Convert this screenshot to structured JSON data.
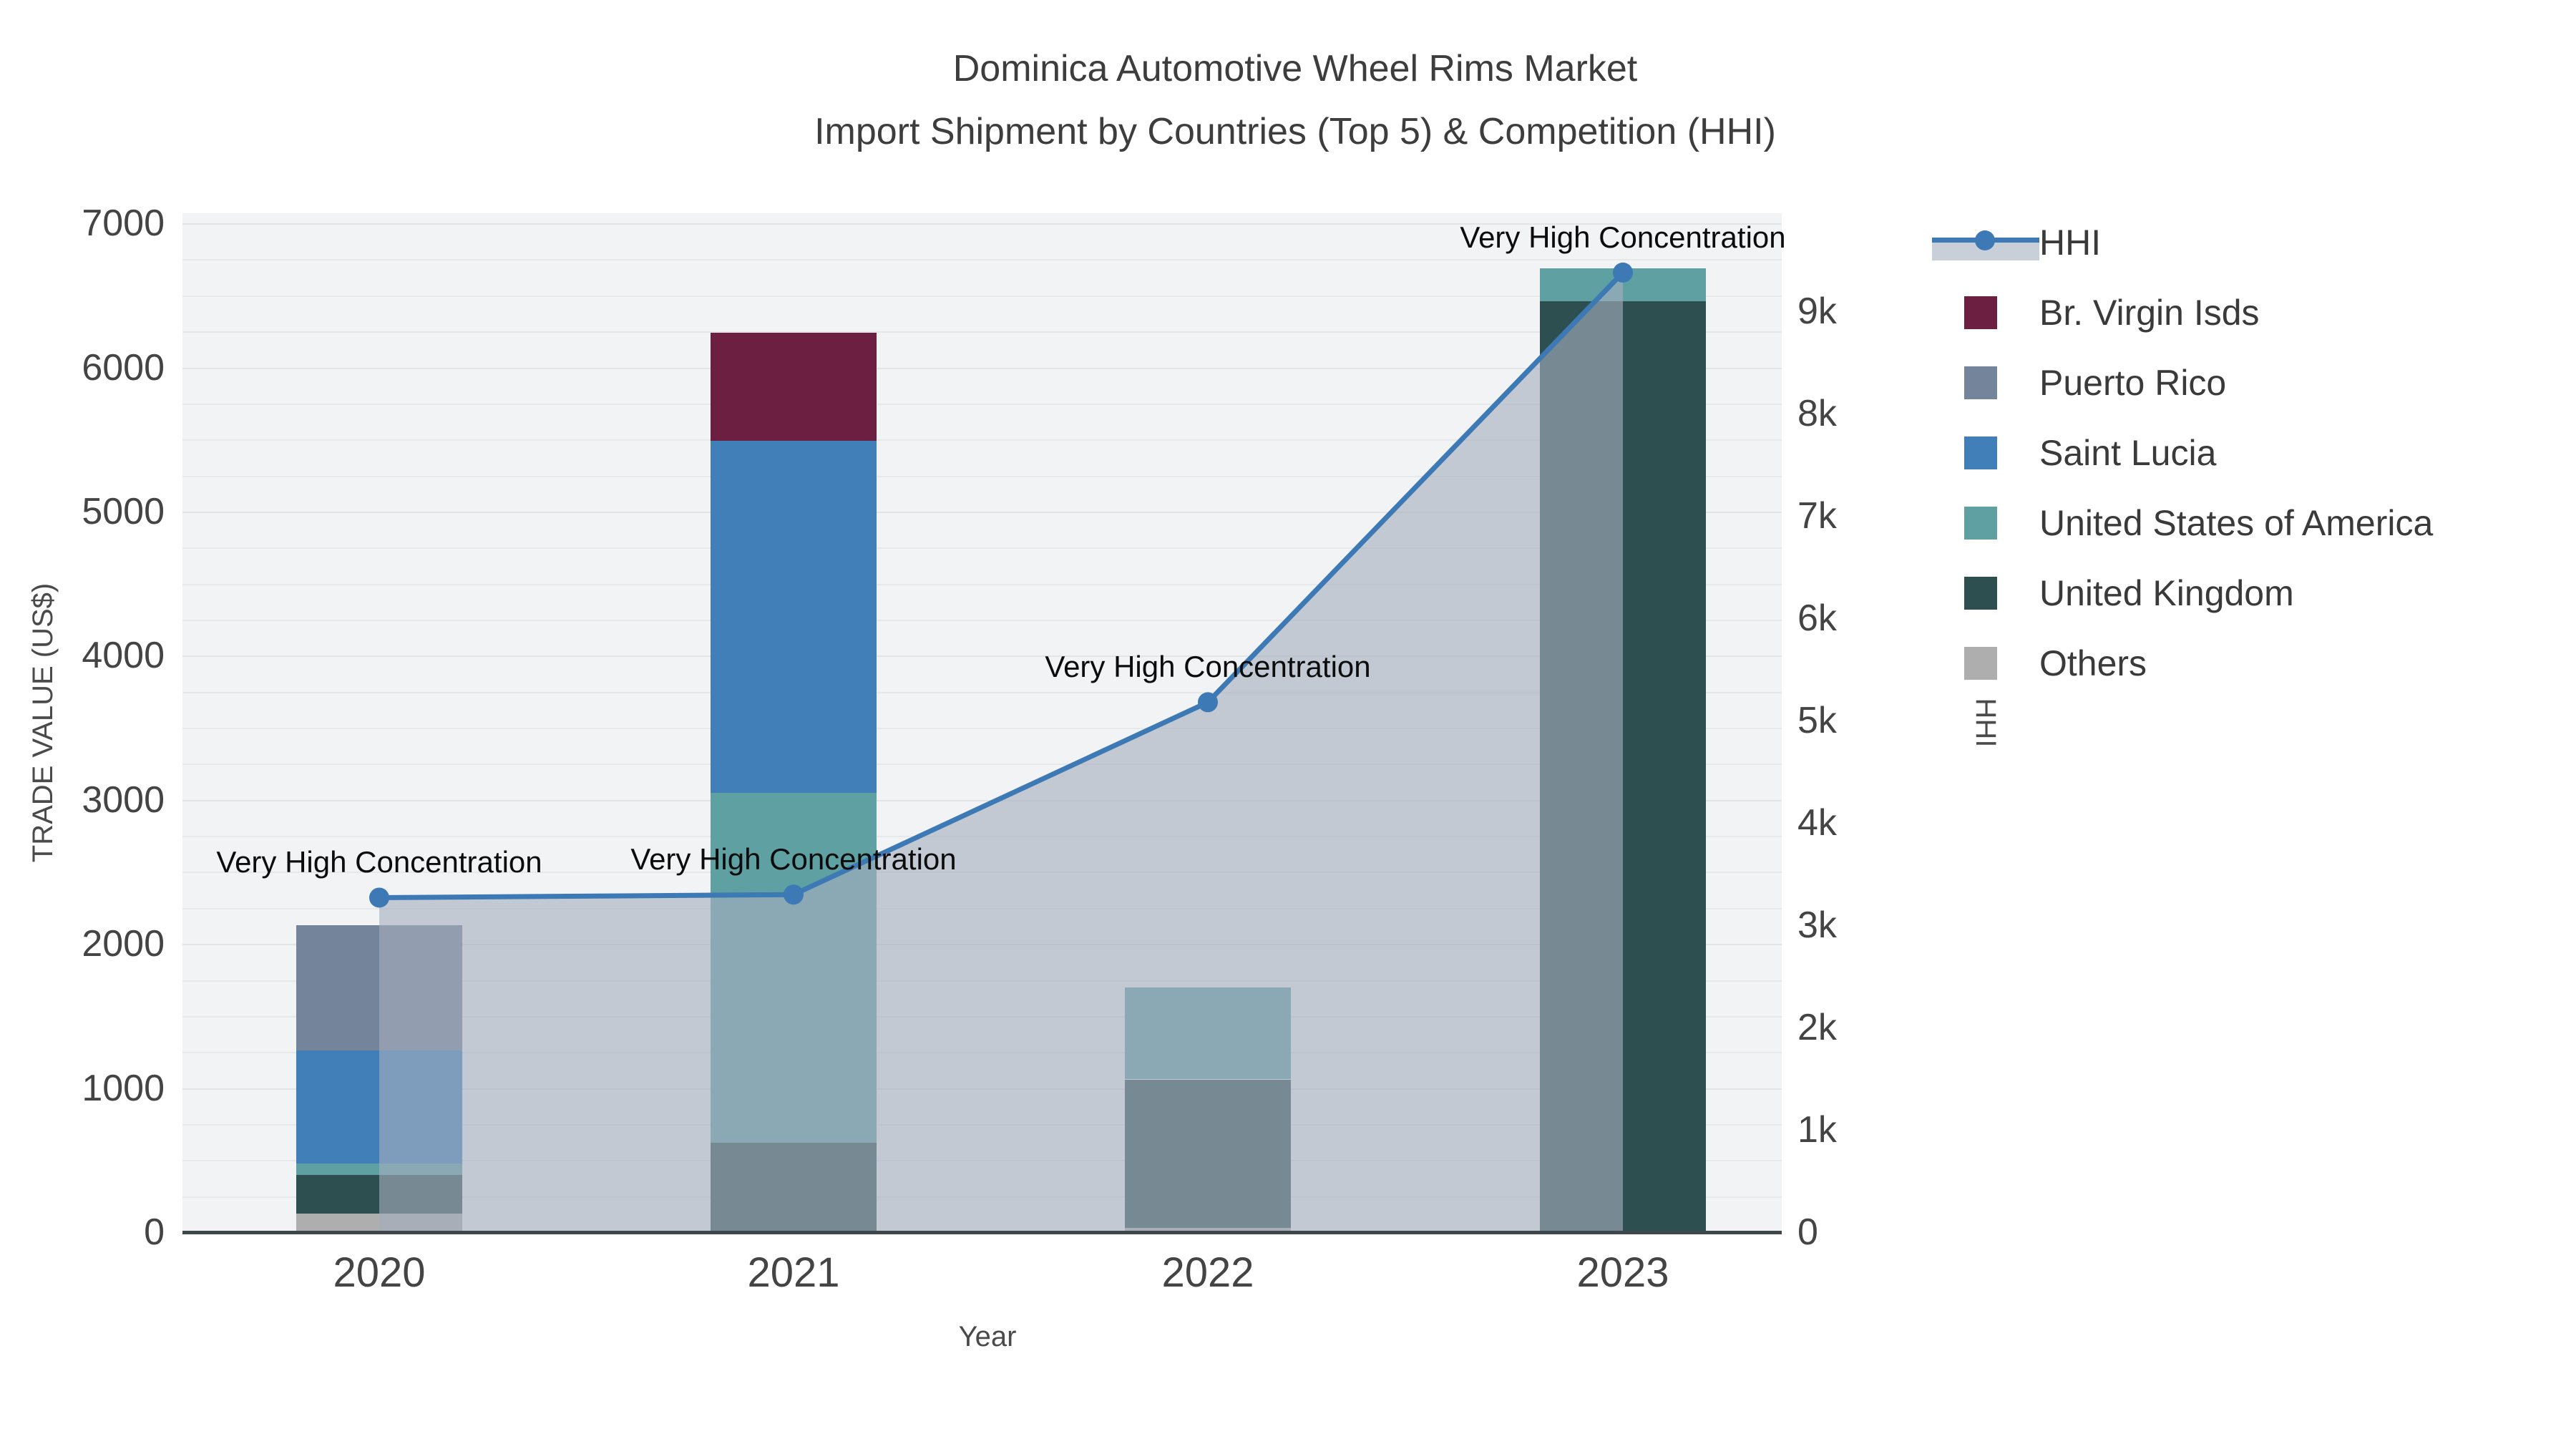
{
  "title": {
    "line1": "Dominica Automotive Wheel Rims Market",
    "line2": "Import Shipment by Countries (Top 5) & Competition (HHI)"
  },
  "axes": {
    "y_left": {
      "label": "TRADE VALUE (US$)",
      "max": 7070,
      "ticks": [
        "0",
        "1000",
        "2000",
        "3000",
        "4000",
        "5000",
        "6000",
        "7000"
      ],
      "tick_values": [
        0,
        1000,
        2000,
        3000,
        4000,
        5000,
        6000,
        7000
      ]
    },
    "y_right": {
      "label": "HHI",
      "max": 9960,
      "ticks": [
        "0",
        "1k",
        "2k",
        "3k",
        "4k",
        "5k",
        "6k",
        "7k",
        "8k",
        "9k"
      ],
      "tick_values": [
        0,
        1000,
        2000,
        3000,
        4000,
        5000,
        6000,
        7000,
        8000,
        9000
      ]
    },
    "x": {
      "label": "Year",
      "categories": [
        "2020",
        "2021",
        "2022",
        "2023"
      ]
    }
  },
  "colors": {
    "plot_bg": "#f2f3f4",
    "axis_line": "#40474a",
    "hhi_line": "#3c79b5",
    "hhi_area": "rgba(164,175,191,0.62)",
    "text": "#3d3d3d"
  },
  "annotation_text": "Very High Concentration",
  "legend": [
    {
      "label": "HHI",
      "type": "line",
      "color": "#3c79b5"
    },
    {
      "label": "Br. Virgin Isds",
      "type": "bar",
      "color": "#6d1f41"
    },
    {
      "label": "Puerto Rico",
      "type": "bar",
      "color": "#74849a"
    },
    {
      "label": "Saint Lucia",
      "type": "bar",
      "color": "#417fb8"
    },
    {
      "label": "United States of America",
      "type": "bar",
      "color": "#5fa0a2"
    },
    {
      "label": "United Kingdom",
      "type": "bar",
      "color": "#2d4f50"
    },
    {
      "label": "Others",
      "type": "bar",
      "color": "#aeaeae"
    }
  ],
  "chart_data": {
    "type": "combo-stacked-bar-line",
    "categories": [
      "2020",
      "2021",
      "2022",
      "2023"
    ],
    "xlabel": "Year",
    "ylabel_left": "TRADE VALUE (US$)",
    "ylabel_right": "HHI",
    "ylim_left": [
      0,
      7070
    ],
    "ylim_right": [
      0,
      9960
    ],
    "grid": true,
    "legend_position": "right",
    "stack_order_bottom_to_top": [
      "Others",
      "United Kingdom",
      "United States of America",
      "Saint Lucia",
      "Puerto Rico",
      "Br. Virgin Isds"
    ],
    "series": [
      {
        "name": "Br. Virgin Isds",
        "type": "bar",
        "color": "#6d1f41",
        "values": [
          0,
          750,
          0,
          0
        ]
      },
      {
        "name": "Puerto Rico",
        "type": "bar",
        "color": "#74849a",
        "values": [
          870,
          0,
          0,
          0
        ]
      },
      {
        "name": "Saint Lucia",
        "type": "bar",
        "color": "#417fb8",
        "values": [
          785,
          2440,
          0,
          0
        ]
      },
      {
        "name": "United States of America",
        "type": "bar",
        "color": "#5fa0a2",
        "values": [
          80,
          2430,
          640,
          230
        ]
      },
      {
        "name": "United Kingdom",
        "type": "bar",
        "color": "#2d4f50",
        "values": [
          265,
          620,
          1030,
          6460
        ]
      },
      {
        "name": "Others",
        "type": "bar",
        "color": "#aeaeae",
        "values": [
          130,
          0,
          30,
          0
        ]
      }
    ],
    "bar_totals": [
      2130,
      6240,
      1700,
      6690
    ],
    "line_series": {
      "name": "HHI",
      "type": "line+area",
      "axis": "right",
      "color": "#3c79b5",
      "area_color": "rgba(164,175,191,0.62)",
      "values": [
        3270,
        3300,
        5180,
        9380
      ]
    },
    "annotations": [
      {
        "text": "Very High Concentration",
        "x": "2020",
        "y_right": 3270
      },
      {
        "text": "Very High Concentration",
        "x": "2021",
        "y_right": 3300
      },
      {
        "text": "Very High Concentration",
        "x": "2022",
        "y_right": 5180
      },
      {
        "text": "Very High Concentration",
        "x": "2023",
        "y_right": 9380
      }
    ]
  }
}
